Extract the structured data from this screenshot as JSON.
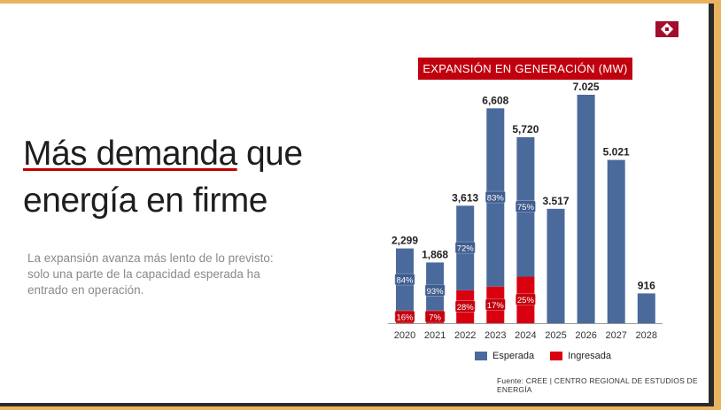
{
  "slide": {
    "title_underlined": "Más demanda",
    "title_rest": " que",
    "title_line2": "energía en firme",
    "paragraph": "La expansión avanza más lento de lo previsto: solo una parte de la capacidad esperada ha entrado en operación.",
    "logo_icon": "red-cross-diamond-logo"
  },
  "chart_data": {
    "type": "bar",
    "stacked": true,
    "title": "EXPANSIÓN EN GENERACIÓN (MW)",
    "categories": [
      "2020",
      "2021",
      "2022",
      "2023",
      "2024",
      "2025",
      "2026",
      "2027",
      "2028"
    ],
    "totals": [
      2299,
      1868,
      3613,
      6608,
      5720,
      3517,
      7025,
      5021,
      916
    ],
    "total_labels": [
      "2,299",
      "1,868",
      "3,613",
      "6,608",
      "5,720",
      "3.517",
      "7.025",
      "5.021",
      "916"
    ],
    "series": [
      {
        "name": "Esperada",
        "color": "#4a6a9c",
        "percent_labels": [
          "84%",
          "93%",
          "72%",
          "83%",
          "75%",
          null,
          null,
          null,
          null
        ]
      },
      {
        "name": "Ingresada",
        "color": "#d9000f",
        "percent_labels": [
          "16%",
          "7%",
          "28%",
          "17%",
          "25%",
          null,
          null,
          null,
          null
        ],
        "share": [
          0.16,
          0.07,
          0.28,
          0.17,
          0.25,
          0,
          0,
          0,
          0
        ]
      }
    ],
    "ylim": [
      0,
      7025
    ],
    "grid": false,
    "legend_position": "bottom",
    "source": "Fuente: CREE | CENTRO REGIONAL DE ESTUDIOS DE ENERGÍA"
  }
}
